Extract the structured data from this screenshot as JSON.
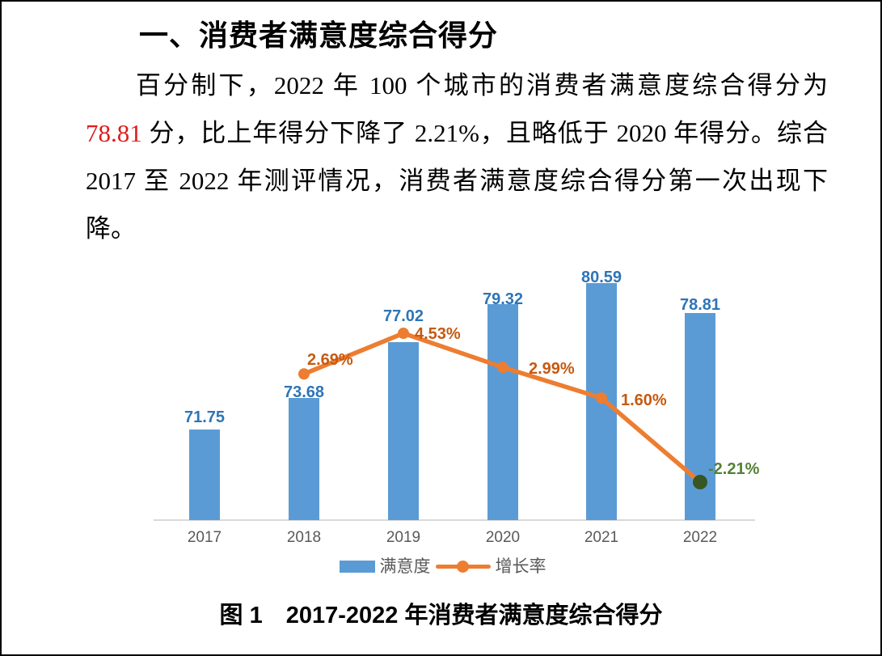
{
  "document": {
    "heading": "一、消费者满意度综合得分",
    "paragraph": {
      "lead": "百分制下，2022 年 100 个城市的消费者满意度综合得分为 ",
      "highlight": "78.81",
      "rest": " 分，比上年得分下降了 2.21%，且略低于 2020 年得分。综合 2017 至 2022 年测评情况，消费者满意度综合得分第一次出现下降。"
    },
    "figure_caption": "图 1　2017-2022 年消费者满意度综合得分"
  },
  "chart_data": {
    "type": "bar",
    "subtype": "combo-bar-line",
    "title": "图 1　2017-2022 年消费者满意度综合得分",
    "categories": [
      "2017",
      "2018",
      "2019",
      "2020",
      "2021",
      "2022"
    ],
    "series": [
      {
        "name": "满意度",
        "type": "bar",
        "values": [
          71.75,
          73.68,
          77.02,
          79.32,
          80.59,
          78.81
        ],
        "labels": [
          "71.75",
          "73.68",
          "77.02",
          "79.32",
          "80.59",
          "78.81"
        ],
        "color": "#5B9BD5",
        "label_color": "#2E75B6"
      },
      {
        "name": "增长率",
        "type": "line",
        "values": [
          null,
          2.69,
          4.53,
          2.99,
          1.6,
          -2.21
        ],
        "labels": [
          null,
          "2.69%",
          "4.53%",
          "2.99%",
          "1.60%",
          "-2.21%"
        ],
        "unit": "%",
        "color": "#ED7D31",
        "label_color": "#C55A11",
        "last_point_color": "#375623",
        "last_label_color": "#538135"
      }
    ],
    "legend": [
      "满意度",
      "增长率"
    ],
    "legend_position": "bottom",
    "grid": false,
    "value_axis_visible": false,
    "approx_value_axis_min": 66.3,
    "tick_color": "#595959",
    "axis_line_color": "#D9D9D9"
  },
  "colors": {
    "page_background": "#FFFFFF",
    "page_border": "#000000",
    "body_text": "#000000",
    "highlight_red": "#E01B1B"
  }
}
